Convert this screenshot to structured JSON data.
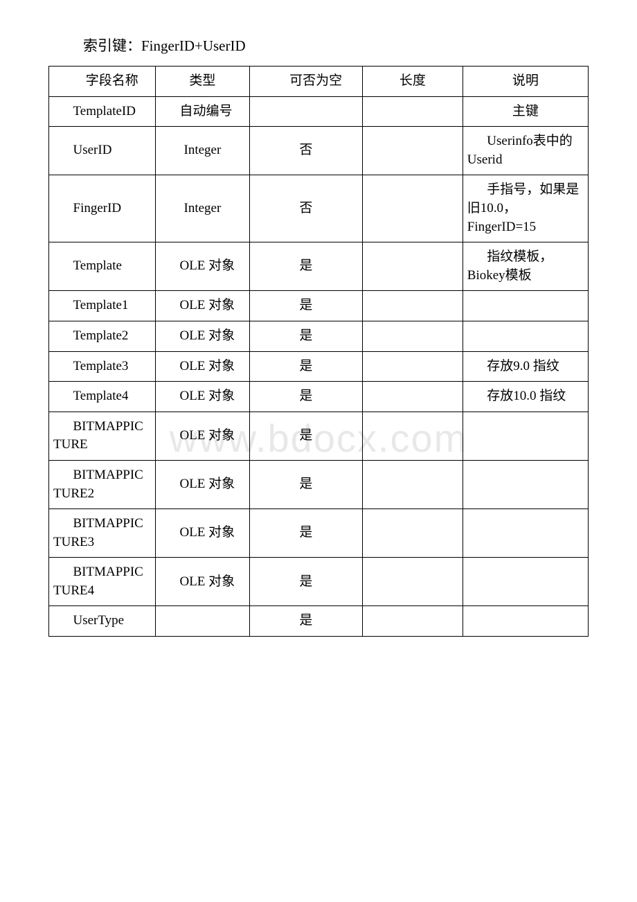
{
  "index_key_label": "索引键：",
  "index_key_value": "FingerID+UserID",
  "headers": {
    "field_name": "字段名称",
    "type": "类型",
    "nullable": "可否为空",
    "length": "长度",
    "description": "说明"
  },
  "rows": [
    {
      "field": "TemplateID",
      "type": "自动编号",
      "nullable": "",
      "length": "",
      "desc": "主键"
    },
    {
      "field": "UserID",
      "type": "Integer",
      "nullable": "否",
      "length": "",
      "desc": "Userinfo表中的Userid"
    },
    {
      "field": "FingerID",
      "type": "Integer",
      "nullable": "否",
      "length": "",
      "desc": "手指号，如果是旧10.0，FingerID=15"
    },
    {
      "field": "Template",
      "type": "OLE 对象",
      "nullable": "是",
      "length": "",
      "desc": "指纹模板，Biokey模板"
    },
    {
      "field": "Template1",
      "type": "OLE 对象",
      "nullable": "是",
      "length": "",
      "desc": ""
    },
    {
      "field": "Template2",
      "type": "OLE 对象",
      "nullable": "是",
      "length": "",
      "desc": ""
    },
    {
      "field": "Template3",
      "type": "OLE 对象",
      "nullable": "是",
      "length": "",
      "desc": "存放9.0 指纹"
    },
    {
      "field": "Template4",
      "type": "OLE 对象",
      "nullable": "是",
      "length": "",
      "desc": "存放10.0 指纹"
    },
    {
      "field": "BITMAPPICTURE",
      "type": "OLE 对象",
      "nullable": "是",
      "length": "",
      "desc": ""
    },
    {
      "field": "BITMAPPICTURE2",
      "type": "OLE 对象",
      "nullable": "是",
      "length": "",
      "desc": ""
    },
    {
      "field": "BITMAPPICTURE3",
      "type": "OLE 对象",
      "nullable": "是",
      "length": "",
      "desc": ""
    },
    {
      "field": "BITMAPPICTURE4",
      "type": "OLE 对象",
      "nullable": "是",
      "length": "",
      "desc": ""
    },
    {
      "field": "UserType",
      "type": "",
      "nullable": "是",
      "length": "",
      "desc": ""
    }
  ],
  "watermark": "www.bdocx.com"
}
